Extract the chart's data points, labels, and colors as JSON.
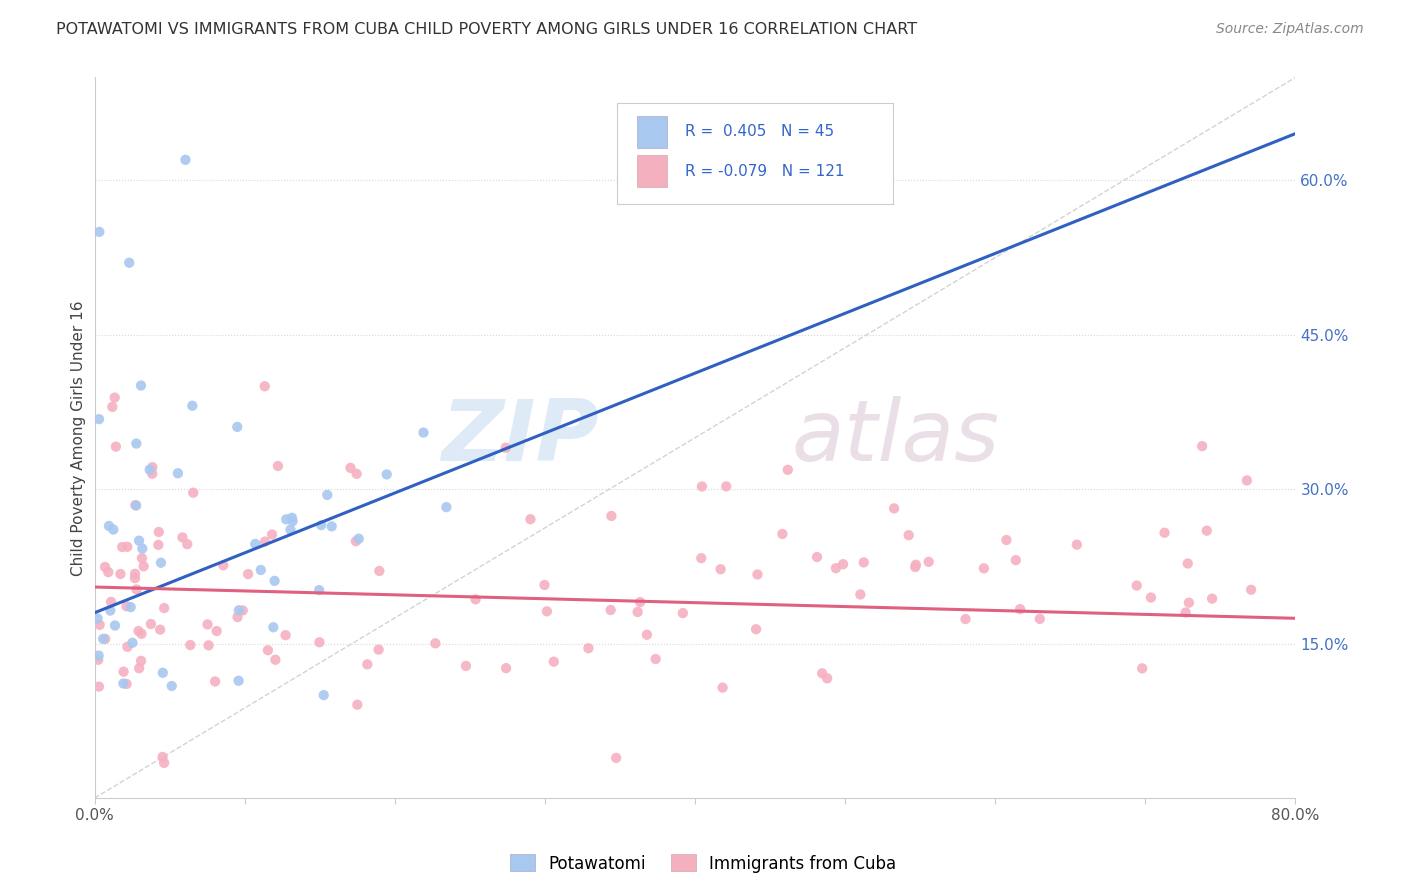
{
  "title": "POTAWATOMI VS IMMIGRANTS FROM CUBA CHILD POVERTY AMONG GIRLS UNDER 16 CORRELATION CHART",
  "source": "Source: ZipAtlas.com",
  "ylabel": "Child Poverty Among Girls Under 16",
  "xlim": [
    0,
    0.8
  ],
  "ylim": [
    0,
    0.7
  ],
  "ytick_vals": [
    0.15,
    0.3,
    0.45,
    0.6
  ],
  "ytick_labels": [
    "15.0%",
    "30.0%",
    "45.0%",
    "60.0%"
  ],
  "potawatomi_R": 0.405,
  "potawatomi_N": 45,
  "cuba_R": -0.079,
  "cuba_N": 121,
  "blue_scatter_color": "#a8c8f0",
  "pink_scatter_color": "#f5b0c0",
  "blue_line_color": "#3060c0",
  "pink_line_color": "#e06080",
  "diagonal_color": "#c8c8c8",
  "grid_color": "#d8d8d8",
  "watermark_zip_color": "#d8e8f8",
  "watermark_atlas_color": "#e8d8e8",
  "legend_text_color": "#3366cc",
  "title_color": "#333333",
  "source_color": "#888888",
  "ylabel_color": "#444444",
  "tick_label_color": "#555555",
  "right_tick_color": "#4472c4"
}
